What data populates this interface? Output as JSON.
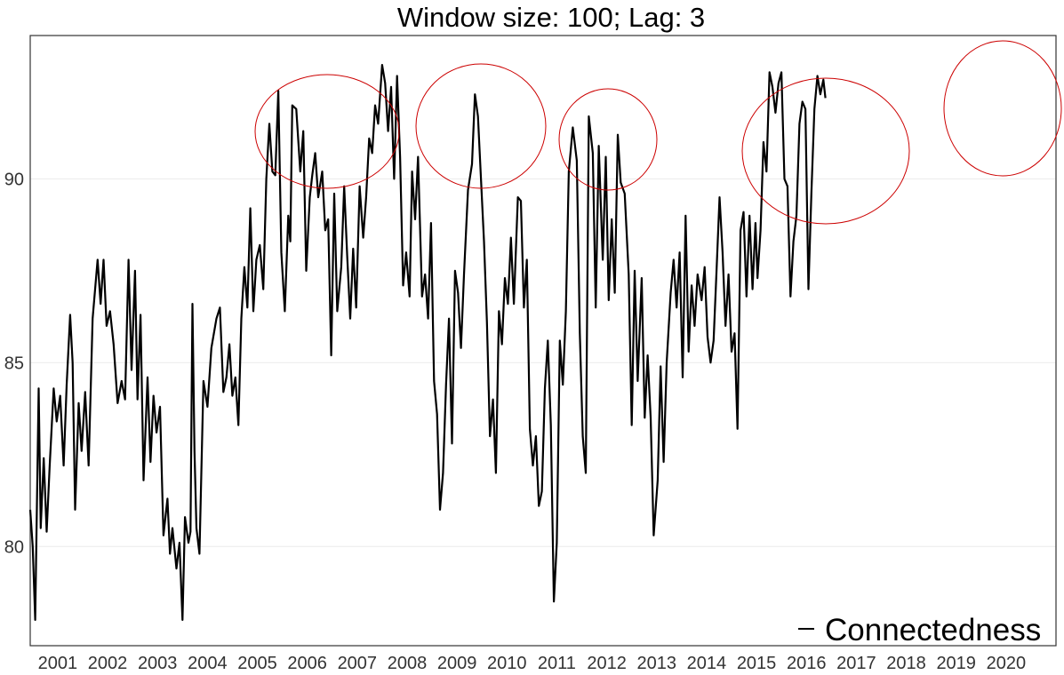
{
  "chart_data": {
    "type": "line",
    "title": "Window size: 100; Lag: 3",
    "xlabel": "",
    "ylabel": "",
    "x_tick_labels": [
      "2001",
      "2002",
      "2003",
      "2004",
      "2005",
      "2006",
      "2007",
      "2008",
      "2009",
      "2010",
      "2011",
      "2012",
      "2013",
      "2014",
      "2015",
      "2016",
      "2017",
      "2018",
      "2019",
      "2020"
    ],
    "y_ticks": [
      80,
      85,
      90
    ],
    "xlim": [
      2000.45,
      2021.0
    ],
    "ylim": [
      77.3,
      93.9
    ],
    "grid": true,
    "legend": {
      "position": "bottom-right",
      "entries": [
        "Connectedness"
      ]
    },
    "series": [
      {
        "name": "Connectedness",
        "color": "#000000",
        "points": [
          [
            2000.45,
            81.0
          ],
          [
            2000.5,
            80.0
          ],
          [
            2000.55,
            78.0
          ],
          [
            2000.62,
            84.3
          ],
          [
            2000.66,
            80.5
          ],
          [
            2000.72,
            82.4
          ],
          [
            2000.78,
            80.4
          ],
          [
            2000.84,
            82.2
          ],
          [
            2000.92,
            84.3
          ],
          [
            2000.98,
            83.4
          ],
          [
            2001.05,
            84.1
          ],
          [
            2001.12,
            82.2
          ],
          [
            2001.18,
            84.4
          ],
          [
            2001.25,
            86.3
          ],
          [
            2001.3,
            85.0
          ],
          [
            2001.35,
            81.0
          ],
          [
            2001.42,
            83.9
          ],
          [
            2001.48,
            82.6
          ],
          [
            2001.55,
            84.2
          ],
          [
            2001.62,
            82.2
          ],
          [
            2001.7,
            86.2
          ],
          [
            2001.8,
            87.8
          ],
          [
            2001.86,
            86.6
          ],
          [
            2001.92,
            87.8
          ],
          [
            2001.98,
            86.0
          ],
          [
            2002.05,
            86.4
          ],
          [
            2002.12,
            85.5
          ],
          [
            2002.2,
            83.9
          ],
          [
            2002.28,
            84.5
          ],
          [
            2002.35,
            84.0
          ],
          [
            2002.42,
            87.8
          ],
          [
            2002.48,
            84.8
          ],
          [
            2002.55,
            87.5
          ],
          [
            2002.6,
            84.0
          ],
          [
            2002.66,
            86.3
          ],
          [
            2002.72,
            81.8
          ],
          [
            2002.8,
            84.6
          ],
          [
            2002.86,
            82.3
          ],
          [
            2002.92,
            84.1
          ],
          [
            2002.98,
            83.1
          ],
          [
            2003.05,
            83.8
          ],
          [
            2003.12,
            80.3
          ],
          [
            2003.2,
            81.3
          ],
          [
            2003.25,
            79.8
          ],
          [
            2003.3,
            80.5
          ],
          [
            2003.38,
            79.4
          ],
          [
            2003.44,
            80.1
          ],
          [
            2003.5,
            78.0
          ],
          [
            2003.55,
            80.8
          ],
          [
            2003.62,
            80.1
          ],
          [
            2003.66,
            80.4
          ],
          [
            2003.7,
            86.6
          ],
          [
            2003.74,
            82.6
          ],
          [
            2003.78,
            80.5
          ],
          [
            2003.84,
            79.8
          ],
          [
            2003.92,
            84.5
          ],
          [
            2004.0,
            83.8
          ],
          [
            2004.08,
            85.4
          ],
          [
            2004.18,
            86.2
          ],
          [
            2004.25,
            86.5
          ],
          [
            2004.32,
            84.2
          ],
          [
            2004.38,
            84.6
          ],
          [
            2004.44,
            85.5
          ],
          [
            2004.5,
            84.1
          ],
          [
            2004.56,
            84.6
          ],
          [
            2004.62,
            83.3
          ],
          [
            2004.68,
            86.2
          ],
          [
            2004.74,
            87.6
          ],
          [
            2004.8,
            86.5
          ],
          [
            2004.86,
            89.2
          ],
          [
            2004.92,
            86.4
          ],
          [
            2004.98,
            87.8
          ],
          [
            2005.05,
            88.2
          ],
          [
            2005.12,
            87.0
          ],
          [
            2005.18,
            90.0
          ],
          [
            2005.24,
            91.5
          ],
          [
            2005.3,
            90.2
          ],
          [
            2005.36,
            90.1
          ],
          [
            2005.42,
            92.4
          ],
          [
            2005.48,
            88.0
          ],
          [
            2005.55,
            86.4
          ],
          [
            2005.62,
            89.0
          ],
          [
            2005.66,
            88.3
          ],
          [
            2005.7,
            92.0
          ],
          [
            2005.78,
            91.9
          ],
          [
            2005.86,
            90.2
          ],
          [
            2005.92,
            91.3
          ],
          [
            2005.98,
            87.5
          ],
          [
            2006.05,
            89.5
          ],
          [
            2006.1,
            90.1
          ],
          [
            2006.16,
            90.7
          ],
          [
            2006.22,
            89.5
          ],
          [
            2006.3,
            90.2
          ],
          [
            2006.36,
            88.6
          ],
          [
            2006.42,
            88.9
          ],
          [
            2006.48,
            85.2
          ],
          [
            2006.54,
            89.6
          ],
          [
            2006.6,
            86.4
          ],
          [
            2006.68,
            87.6
          ],
          [
            2006.74,
            89.8
          ],
          [
            2006.8,
            87.9
          ],
          [
            2006.86,
            86.2
          ],
          [
            2006.92,
            88.1
          ],
          [
            2006.98,
            86.5
          ],
          [
            2007.05,
            89.8
          ],
          [
            2007.12,
            88.4
          ],
          [
            2007.18,
            89.5
          ],
          [
            2007.24,
            91.1
          ],
          [
            2007.3,
            90.7
          ],
          [
            2007.36,
            92.0
          ],
          [
            2007.42,
            91.5
          ],
          [
            2007.5,
            93.1
          ],
          [
            2007.56,
            92.6
          ],
          [
            2007.62,
            91.3
          ],
          [
            2007.68,
            92.5
          ],
          [
            2007.74,
            90.0
          ],
          [
            2007.8,
            92.8
          ],
          [
            2007.86,
            90.6
          ],
          [
            2007.92,
            87.1
          ],
          [
            2007.98,
            88.0
          ],
          [
            2008.05,
            86.8
          ],
          [
            2008.1,
            90.2
          ],
          [
            2008.16,
            88.9
          ],
          [
            2008.22,
            90.6
          ],
          [
            2008.3,
            86.8
          ],
          [
            2008.36,
            87.4
          ],
          [
            2008.42,
            86.2
          ],
          [
            2008.48,
            88.8
          ],
          [
            2008.54,
            84.5
          ],
          [
            2008.6,
            83.6
          ],
          [
            2008.66,
            81.0
          ],
          [
            2008.72,
            82.0
          ],
          [
            2008.78,
            84.4
          ],
          [
            2008.84,
            86.2
          ],
          [
            2008.9,
            82.8
          ],
          [
            2008.96,
            87.5
          ],
          [
            2009.02,
            86.9
          ],
          [
            2009.08,
            85.4
          ],
          [
            2009.14,
            87.4
          ],
          [
            2009.22,
            89.7
          ],
          [
            2009.3,
            90.4
          ],
          [
            2009.36,
            92.3
          ],
          [
            2009.42,
            91.7
          ],
          [
            2009.48,
            90.0
          ],
          [
            2009.54,
            88.3
          ],
          [
            2009.6,
            86.1
          ],
          [
            2009.66,
            83.0
          ],
          [
            2009.72,
            84.0
          ],
          [
            2009.78,
            82.0
          ],
          [
            2009.84,
            86.4
          ],
          [
            2009.9,
            85.5
          ],
          [
            2009.96,
            87.3
          ],
          [
            2010.02,
            86.6
          ],
          [
            2010.08,
            88.4
          ],
          [
            2010.14,
            86.6
          ],
          [
            2010.22,
            89.5
          ],
          [
            2010.28,
            89.4
          ],
          [
            2010.34,
            86.5
          ],
          [
            2010.4,
            87.8
          ],
          [
            2010.46,
            83.2
          ],
          [
            2010.52,
            82.2
          ],
          [
            2010.58,
            83.0
          ],
          [
            2010.64,
            81.1
          ],
          [
            2010.7,
            81.5
          ],
          [
            2010.76,
            84.3
          ],
          [
            2010.82,
            85.6
          ],
          [
            2010.88,
            83.3
          ],
          [
            2010.94,
            78.5
          ],
          [
            2011.0,
            80.1
          ],
          [
            2011.06,
            85.6
          ],
          [
            2011.12,
            84.4
          ],
          [
            2011.18,
            86.4
          ],
          [
            2011.24,
            90.2
          ],
          [
            2011.32,
            91.4
          ],
          [
            2011.4,
            90.5
          ],
          [
            2011.46,
            85.8
          ],
          [
            2011.52,
            83.0
          ],
          [
            2011.58,
            82.0
          ],
          [
            2011.64,
            91.7
          ],
          [
            2011.72,
            90.7
          ],
          [
            2011.78,
            86.5
          ],
          [
            2011.84,
            90.9
          ],
          [
            2011.92,
            87.8
          ],
          [
            2011.98,
            90.6
          ],
          [
            2012.04,
            86.7
          ],
          [
            2012.1,
            88.9
          ],
          [
            2012.16,
            86.9
          ],
          [
            2012.22,
            91.2
          ],
          [
            2012.28,
            89.9
          ],
          [
            2012.36,
            89.6
          ],
          [
            2012.44,
            87.4
          ],
          [
            2012.5,
            83.3
          ],
          [
            2012.56,
            87.5
          ],
          [
            2012.62,
            84.5
          ],
          [
            2012.7,
            87.3
          ],
          [
            2012.76,
            83.5
          ],
          [
            2012.82,
            85.2
          ],
          [
            2012.88,
            83.5
          ],
          [
            2012.94,
            80.3
          ],
          [
            2013.02,
            81.8
          ],
          [
            2013.08,
            84.9
          ],
          [
            2013.14,
            82.3
          ],
          [
            2013.2,
            85.0
          ],
          [
            2013.28,
            86.9
          ],
          [
            2013.34,
            87.8
          ],
          [
            2013.4,
            86.5
          ],
          [
            2013.46,
            88.0
          ],
          [
            2013.52,
            84.6
          ],
          [
            2013.58,
            89.0
          ],
          [
            2013.64,
            85.3
          ],
          [
            2013.7,
            87.1
          ],
          [
            2013.76,
            86.0
          ],
          [
            2013.82,
            87.4
          ],
          [
            2013.9,
            86.7
          ],
          [
            2013.96,
            87.6
          ],
          [
            2014.02,
            85.7
          ],
          [
            2014.08,
            85.0
          ],
          [
            2014.14,
            85.6
          ],
          [
            2014.2,
            87.5
          ],
          [
            2014.26,
            89.5
          ],
          [
            2014.32,
            88.0
          ],
          [
            2014.38,
            86.0
          ],
          [
            2014.44,
            87.4
          ],
          [
            2014.5,
            85.3
          ],
          [
            2014.56,
            85.8
          ],
          [
            2014.62,
            83.2
          ],
          [
            2014.68,
            88.6
          ],
          [
            2014.74,
            89.1
          ],
          [
            2014.8,
            86.8
          ],
          [
            2014.86,
            89.0
          ],
          [
            2014.92,
            87.0
          ],
          [
            2014.98,
            88.8
          ],
          [
            2015.02,
            87.3
          ],
          [
            2015.08,
            88.6
          ],
          [
            2015.14,
            91.0
          ],
          [
            2015.2,
            90.2
          ],
          [
            2015.26,
            92.9
          ],
          [
            2015.32,
            92.5
          ],
          [
            2015.38,
            91.8
          ],
          [
            2015.44,
            92.6
          ],
          [
            2015.5,
            92.9
          ],
          [
            2015.56,
            90.0
          ],
          [
            2015.62,
            89.8
          ],
          [
            2015.68,
            86.8
          ],
          [
            2015.74,
            88.3
          ],
          [
            2015.8,
            89.0
          ],
          [
            2015.86,
            91.5
          ],
          [
            2015.92,
            92.1
          ],
          [
            2015.98,
            91.9
          ],
          [
            2016.04,
            87.0
          ],
          [
            2016.1,
            89.6
          ],
          [
            2016.16,
            91.9
          ],
          [
            2016.22,
            92.8
          ],
          [
            2016.28,
            92.3
          ],
          [
            2016.34,
            92.7
          ],
          [
            2016.38,
            92.2
          ]
        ]
      }
    ]
  }
}
